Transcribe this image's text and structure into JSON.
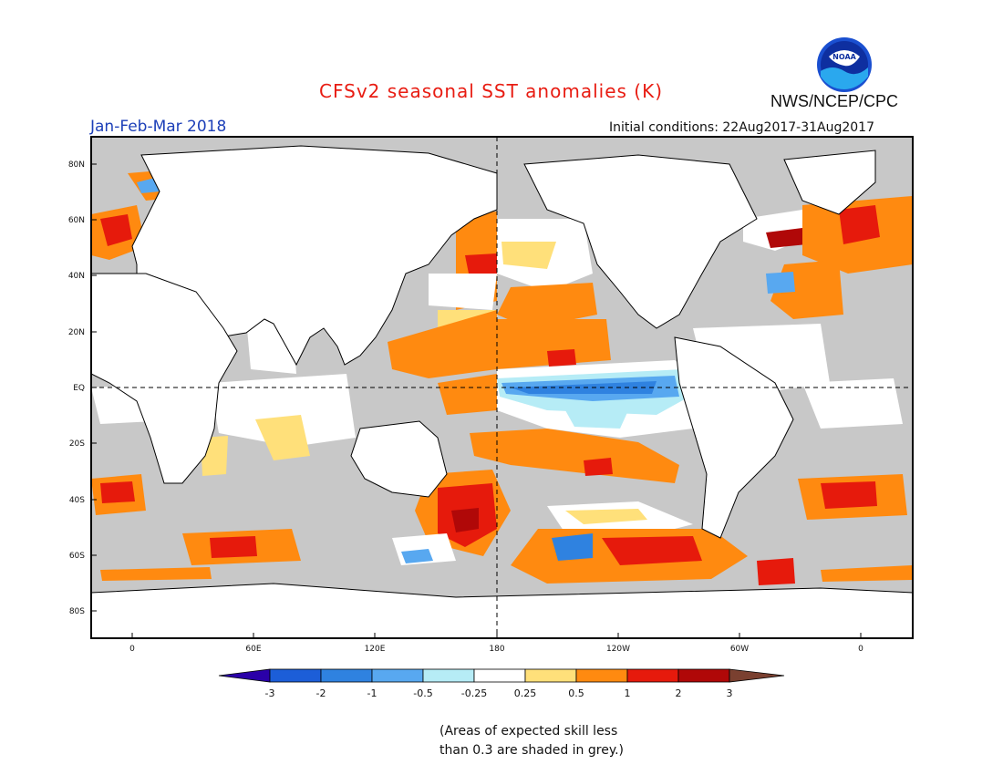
{
  "header": {
    "title": "CFSv2 seasonal SST anomalies (K)",
    "agency": "NWS/NCEP/CPC",
    "season": "Jan-Feb-Mar 2018",
    "initial_conditions": "Initial conditions: 22Aug2017-31Aug2017",
    "logo_text": "NOAA"
  },
  "map": {
    "y_ticks": [
      "80N",
      "60N",
      "40N",
      "20N",
      "EQ",
      "20S",
      "40S",
      "60S",
      "80S"
    ],
    "x_ticks": [
      "0",
      "60E",
      "120E",
      "180",
      "120W",
      "60W",
      "0"
    ]
  },
  "colorbar": {
    "ticks": [
      "-3",
      "-2",
      "-1",
      "-0.5",
      "-0.25",
      "0.25",
      "0.5",
      "1",
      "2",
      "3"
    ],
    "colors": [
      "#2a00a8",
      "#1c5ed8",
      "#2f82e0",
      "#58a8f0",
      "#b6ecf6",
      "#ffffff",
      "#ffe07a",
      "#ff8a10",
      "#e61a0c",
      "#b00808",
      "#7a4030"
    ]
  },
  "note": {
    "line1": "(Areas of expected skill less",
    "line2": "than 0.3 are shaded in grey.)"
  },
  "colors": {
    "title": "#e81c12",
    "season": "#1c3fb8",
    "ocean_grey": "#c8c8c8"
  }
}
